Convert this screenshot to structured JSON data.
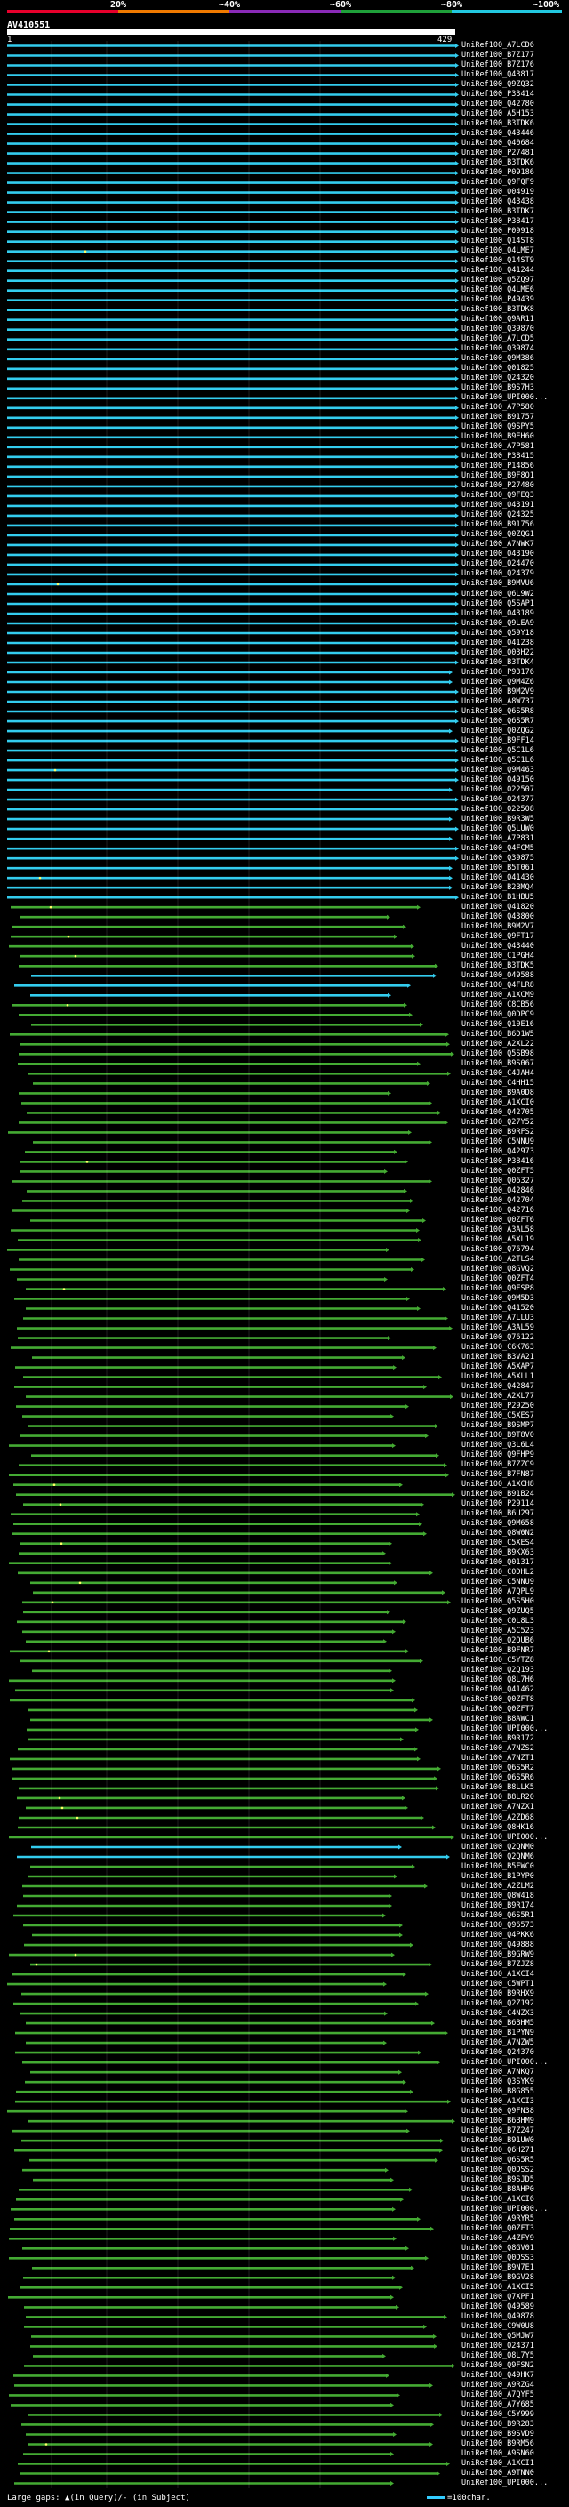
{
  "scale": {
    "labels": [
      "20%",
      "~40%",
      "~60%",
      "~80%",
      "~100%"
    ],
    "colors": [
      "#e8002c",
      "#f07a00",
      "#8a2ab8",
      "#1fa03a",
      "#22c8e0"
    ]
  },
  "query": {
    "title": "AV410551",
    "start": "1",
    "end": "429"
  },
  "colors": {
    "high": "#33ccee",
    "low": "#44aa33",
    "line": "#ffffff",
    "dot": "#ffff66"
  },
  "hits": [
    "UniRef100_A7LCD6",
    "UniRef100_B7Z177",
    "UniRef100_B7Z176",
    "UniRef100_Q43817",
    "UniRef100_Q9ZQ32",
    "UniRef100_P33414",
    "UniRef100_Q42780",
    "UniRef100_A5H153",
    "UniRef100_B3TDK6",
    "UniRef100_Q43446",
    "UniRef100_Q40684",
    "UniRef100_P27481",
    "UniRef100_B3TDK6",
    "UniRef100_P09186",
    "UniRef100_Q9FQF9",
    "UniRef100_O04919",
    "UniRef100_Q43438",
    "UniRef100_B3TDK7",
    "UniRef100_P38417",
    "UniRef100_P09918",
    "UniRef100_Q14ST8",
    "UniRef100_Q4LME7",
    "UniRef100_Q14ST9",
    "UniRef100_Q41244",
    "UniRef100_Q5ZQ97",
    "UniRef100_Q4LME6",
    "UniRef100_P49439",
    "UniRef100_B3TDK8",
    "UniRef100_Q9AR11",
    "UniRef100_Q39870",
    "UniRef100_A7LCD5",
    "UniRef100_Q39874",
    "UniRef100_Q9M386",
    "UniRef100_Q01825",
    "UniRef100_Q24320",
    "UniRef100_B9S7H3",
    "UniRef100_UPI000...",
    "UniRef100_A7P580",
    "UniRef100_B91757",
    "UniRef100_Q9SPY5",
    "UniRef100_B9EH60",
    "UniRef100_A7P581",
    "UniRef100_P38415",
    "UniRef100_P14856",
    "UniRef100_B9F8Q1",
    "UniRef100_P27480",
    "UniRef100_Q9FEQ3",
    "UniRef100_O43191",
    "UniRef100_Q24325",
    "UniRef100_B91756",
    "UniRef100_Q0ZQG1",
    "UniRef100_A7NWK7",
    "UniRef100_O43190",
    "UniRef100_Q24470",
    "UniRef100_Q24379",
    "UniRef100_B9MVU6",
    "UniRef100_Q6L9W2",
    "UniRef100_Q5SAP1",
    "UniRef100_O43189",
    "UniRef100_Q9LEA9",
    "UniRef100_Q59Y18",
    "UniRef100_O41238",
    "UniRef100_Q03H22",
    "UniRef100_B3TDK4",
    "UniRef100_P93176",
    "UniRef100_Q9M4Z6",
    "UniRef100_B9M2V9",
    "UniRef100_A8W737",
    "UniRef100_Q6S5R8",
    "UniRef100_Q6S5R7",
    "UniRef100_Q0ZQG2",
    "UniRef100_B9FF14",
    "UniRef100_Q5C1L6",
    "UniRef100_Q5C1L6",
    "UniRef100_Q9M463",
    "UniRef100_O49150",
    "UniRef100_O22507",
    "UniRef100_O24377",
    "UniRef100_O22508",
    "UniRef100_B9R3W5",
    "UniRef100_Q5LUW0",
    "UniRef100_A7P831",
    "UniRef100_Q4FCM5",
    "UniRef100_Q39875",
    "UniRef100_B5T061",
    "UniRef100_Q41430",
    "UniRef100_B2BMQ4",
    "UniRef100_B1HBU5",
    "UniRef100_Q41820",
    "UniRef100_Q43800",
    "UniRef100_B9M2V7",
    "UniRef100_Q9FT17",
    "UniRef100_Q43440",
    "UniRef100_C1PGH4",
    "UniRef100_B3TDK5",
    "UniRef100_O49588",
    "UniRef100_Q4FLR8",
    "UniRef100_A1XCM9",
    "UniRef100_C8CB56",
    "UniRef100_Q0DPC9",
    "UniRef100_Q10E16",
    "UniRef100_B6D1W5",
    "UniRef100_A2XL22",
    "UniRef100_Q5SB98",
    "UniRef100_B9S067",
    "UniRef100_C4JAH4",
    "UniRef100_C4HH15",
    "UniRef100_B9A0D8",
    "UniRef100_A1XCI0",
    "UniRef100_Q42705",
    "UniRef100_Q27Y52",
    "UniRef100_B9RFS2",
    "UniRef100_C5NNU9",
    "UniRef100_Q42973",
    "UniRef100_P38416",
    "UniRef100_Q0ZFT5",
    "UniRef100_Q06327",
    "UniRef100_Q42846",
    "UniRef100_Q42704",
    "UniRef100_Q42716",
    "UniRef100_Q0ZFT6",
    "UniRef100_A3AL58",
    "UniRef100_A5XL19",
    "UniRef100_Q76794",
    "UniRef100_A2TLS4",
    "UniRef100_Q8GVQ2",
    "UniRef100_Q0ZFT4",
    "UniRef100_Q9FSP8",
    "UniRef100_Q9M5D3",
    "UniRef100_Q41520",
    "UniRef100_A7LLU3",
    "UniRef100_A3AL59",
    "UniRef100_Q76122",
    "UniRef100_C6K763",
    "UniRef100_B3VA21",
    "UniRef100_A5XAP7",
    "UniRef100_A5XLL1",
    "UniRef100_Q42847",
    "UniRef100_A2XL77",
    "UniRef100_P29250",
    "UniRef100_C5XES7",
    "UniRef100_B9SMP7",
    "UniRef100_B9T8V0",
    "UniRef100_Q3L6L4",
    "UniRef100_Q9FHP9",
    "UniRef100_B7ZZC9",
    "UniRef100_B7FN87",
    "UniRef100_A1XCH8",
    "UniRef100_B91B24",
    "UniRef100_P29114",
    "UniRef100_B6U297",
    "UniRef100_Q9M658",
    "UniRef100_Q8W0N2",
    "UniRef100_C5XES4",
    "UniRef100_B9KX63",
    "UniRef100_Q01317",
    "UniRef100_C0DHL2",
    "UniRef100_C5NNU9",
    "UniRef100_A7QPL9",
    "UniRef100_Q5S5H0",
    "UniRef100_Q9ZUQ5",
    "UniRef100_C0L8L3",
    "UniRef100_A5C523",
    "UniRef100_O2QUB6",
    "UniRef100_B9FNR7",
    "UniRef100_C5YTZ8",
    "UniRef100_Q2Q193",
    "UniRef100_Q8L7H6",
    "UniRef100_Q41462",
    "UniRef100_Q0ZFT8",
    "UniRef100_Q0ZFT7",
    "UniRef100_B8AWC1",
    "UniRef100_UPI000...",
    "UniRef100_B9R172",
    "UniRef100_A7NZS2",
    "UniRef100_A7NZT1",
    "UniRef100_Q6S5R2",
    "UniRef100_Q6S5R6",
    "UniRef100_B8LLK5",
    "UniRef100_B8LR20",
    "UniRef100_A7NZX1",
    "UniRef100_A2ZD68",
    "UniRef100_Q8HK16",
    "UniRef100_UPI000...",
    "UniRef100_Q2QNM0",
    "UniRef100_Q2QNM6",
    "UniRef100_B5FWC0",
    "UniRef100_B1PYP0",
    "UniRef100_A2ZLM2",
    "UniRef100_Q8W418",
    "UniRef100_B9R174",
    "UniRef100_Q6S5R1",
    "UniRef100_Q96573",
    "UniRef100_Q4PKK6",
    "UniRef100_Q49888",
    "UniRef100_B9GRW9",
    "UniRef100_B7ZJZ8",
    "UniRef100_A1XCI4",
    "UniRef100_C5WPT1",
    "UniRef100_B9RHX9",
    "UniRef100_Q2Z192",
    "UniRef100_C4NZX3",
    "UniRef100_B6BHM5",
    "UniRef100_B1PYN9",
    "UniRef100_A7NZW5",
    "UniRef100_Q24370",
    "UniRef100_UPI000...",
    "UniRef100_A7NKQ7",
    "UniRef100_Q3SYK9",
    "UniRef100_B8G855",
    "UniRef100_A1XCI3",
    "UniRef100_Q9FN38",
    "UniRef100_B6BHM9",
    "UniRef100_B7Z247",
    "UniRef100_B91UW0",
    "UniRef100_Q6H271",
    "UniRef100_Q6S5R5",
    "UniRef100_Q0DSS2",
    "UniRef100_B9SJD5",
    "UniRef100_B8AHP0",
    "UniRef100_A1XCI6",
    "UniRef100_UPI000...",
    "UniRef100_A9RYR5",
    "UniRef100_Q0ZFT3",
    "UniRef100_A4ZFY9",
    "UniRef100_Q8GV01",
    "UniRef100_Q0DSS3",
    "UniRef100_B9N7E1",
    "UniRef100_B9GV28",
    "UniRef100_A1XCI5",
    "UniRef100_Q7XPF1",
    "UniRef100_Q49589",
    "UniRef100_Q49878",
    "UniRef100_C9W0U8",
    "UniRef100_Q5MJW7",
    "UniRef100_O24371",
    "UniRef100_Q8L7Y5",
    "UniRef100_Q9FSN2",
    "UniRef100_Q49HK7",
    "UniRef100_A9RZG4",
    "UniRef100_A7QYF5",
    "UniRef100_A7Y685",
    "UniRef100_C5Y999",
    "UniRef100_B9R283",
    "UniRef100_B9SVD9",
    "UniRef100_B9RM56",
    "UniRef100_A9SN60",
    "UniRef100_A1XCI1",
    "UniRef100_A9TNN0",
    "UniRef100_UPI000..."
  ],
  "footer": {
    "text": "Large gaps: ▲(in Query)/- (in Subject)",
    "scale_text": "=100char."
  }
}
